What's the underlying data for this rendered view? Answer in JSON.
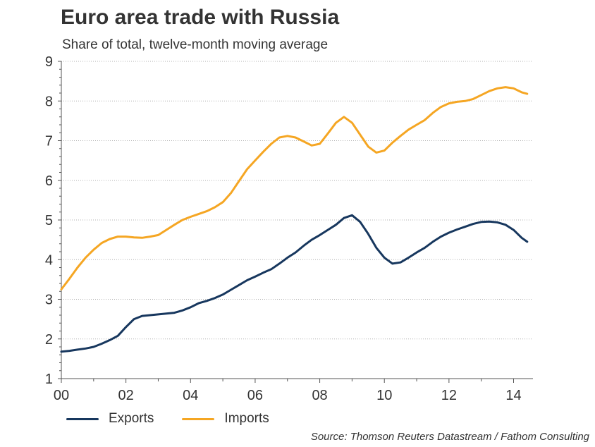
{
  "chart_data": {
    "type": "line",
    "title": "Euro area trade with Russia",
    "subtitle": "Share of total, twelve-month moving average",
    "xlabel": "",
    "ylabel": "",
    "xlim": [
      2000,
      2014.6
    ],
    "ylim": [
      1,
      9
    ],
    "x_ticks": [
      {
        "value": 2000,
        "label": "00"
      },
      {
        "value": 2002,
        "label": "02"
      },
      {
        "value": 2004,
        "label": "04"
      },
      {
        "value": 2006,
        "label": "06"
      },
      {
        "value": 2008,
        "label": "08"
      },
      {
        "value": 2010,
        "label": "10"
      },
      {
        "value": 2012,
        "label": "12"
      },
      {
        "value": 2014,
        "label": "14"
      }
    ],
    "y_ticks": [
      1,
      2,
      3,
      4,
      5,
      6,
      7,
      8,
      9
    ],
    "grid": true,
    "legend_position": "bottom-left",
    "source": "Source: Thomson Reuters Datastream / Fathom Consulting",
    "series": [
      {
        "name": "Exports",
        "color": "#17375e",
        "points": [
          [
            2000.0,
            1.68
          ],
          [
            2000.25,
            1.7
          ],
          [
            2000.5,
            1.73
          ],
          [
            2000.75,
            1.76
          ],
          [
            2001.0,
            1.8
          ],
          [
            2001.25,
            1.88
          ],
          [
            2001.5,
            1.97
          ],
          [
            2001.75,
            2.08
          ],
          [
            2002.0,
            2.3
          ],
          [
            2002.25,
            2.5
          ],
          [
            2002.5,
            2.58
          ],
          [
            2002.75,
            2.6
          ],
          [
            2003.0,
            2.62
          ],
          [
            2003.25,
            2.64
          ],
          [
            2003.5,
            2.66
          ],
          [
            2003.75,
            2.72
          ],
          [
            2004.0,
            2.8
          ],
          [
            2004.25,
            2.9
          ],
          [
            2004.5,
            2.96
          ],
          [
            2004.75,
            3.03
          ],
          [
            2005.0,
            3.12
          ],
          [
            2005.25,
            3.24
          ],
          [
            2005.5,
            3.36
          ],
          [
            2005.75,
            3.48
          ],
          [
            2006.0,
            3.57
          ],
          [
            2006.25,
            3.67
          ],
          [
            2006.5,
            3.76
          ],
          [
            2006.75,
            3.9
          ],
          [
            2007.0,
            4.05
          ],
          [
            2007.25,
            4.18
          ],
          [
            2007.5,
            4.35
          ],
          [
            2007.75,
            4.5
          ],
          [
            2008.0,
            4.62
          ],
          [
            2008.25,
            4.75
          ],
          [
            2008.5,
            4.88
          ],
          [
            2008.75,
            5.05
          ],
          [
            2009.0,
            5.12
          ],
          [
            2009.25,
            4.95
          ],
          [
            2009.5,
            4.65
          ],
          [
            2009.75,
            4.3
          ],
          [
            2010.0,
            4.05
          ],
          [
            2010.25,
            3.9
          ],
          [
            2010.5,
            3.93
          ],
          [
            2010.75,
            4.05
          ],
          [
            2011.0,
            4.18
          ],
          [
            2011.25,
            4.3
          ],
          [
            2011.5,
            4.45
          ],
          [
            2011.75,
            4.58
          ],
          [
            2012.0,
            4.68
          ],
          [
            2012.25,
            4.76
          ],
          [
            2012.5,
            4.83
          ],
          [
            2012.75,
            4.9
          ],
          [
            2013.0,
            4.95
          ],
          [
            2013.25,
            4.96
          ],
          [
            2013.5,
            4.94
          ],
          [
            2013.75,
            4.88
          ],
          [
            2014.0,
            4.75
          ],
          [
            2014.25,
            4.55
          ],
          [
            2014.42,
            4.45
          ]
        ]
      },
      {
        "name": "Imports",
        "color": "#f5a623",
        "points": [
          [
            2000.0,
            3.25
          ],
          [
            2000.25,
            3.52
          ],
          [
            2000.5,
            3.8
          ],
          [
            2000.75,
            4.05
          ],
          [
            2001.0,
            4.25
          ],
          [
            2001.25,
            4.42
          ],
          [
            2001.5,
            4.52
          ],
          [
            2001.75,
            4.58
          ],
          [
            2002.0,
            4.58
          ],
          [
            2002.25,
            4.56
          ],
          [
            2002.5,
            4.55
          ],
          [
            2002.75,
            4.58
          ],
          [
            2003.0,
            4.62
          ],
          [
            2003.25,
            4.75
          ],
          [
            2003.5,
            4.88
          ],
          [
            2003.75,
            5.0
          ],
          [
            2004.0,
            5.08
          ],
          [
            2004.25,
            5.15
          ],
          [
            2004.5,
            5.22
          ],
          [
            2004.75,
            5.32
          ],
          [
            2005.0,
            5.45
          ],
          [
            2005.25,
            5.68
          ],
          [
            2005.5,
            5.98
          ],
          [
            2005.75,
            6.28
          ],
          [
            2006.0,
            6.5
          ],
          [
            2006.25,
            6.72
          ],
          [
            2006.5,
            6.92
          ],
          [
            2006.75,
            7.08
          ],
          [
            2007.0,
            7.12
          ],
          [
            2007.25,
            7.08
          ],
          [
            2007.5,
            6.98
          ],
          [
            2007.75,
            6.88
          ],
          [
            2008.0,
            6.92
          ],
          [
            2008.25,
            7.18
          ],
          [
            2008.5,
            7.45
          ],
          [
            2008.75,
            7.6
          ],
          [
            2009.0,
            7.45
          ],
          [
            2009.25,
            7.15
          ],
          [
            2009.5,
            6.85
          ],
          [
            2009.75,
            6.7
          ],
          [
            2010.0,
            6.75
          ],
          [
            2010.25,
            6.95
          ],
          [
            2010.5,
            7.12
          ],
          [
            2010.75,
            7.28
          ],
          [
            2011.0,
            7.4
          ],
          [
            2011.25,
            7.52
          ],
          [
            2011.5,
            7.7
          ],
          [
            2011.75,
            7.85
          ],
          [
            2012.0,
            7.94
          ],
          [
            2012.25,
            7.98
          ],
          [
            2012.5,
            8.0
          ],
          [
            2012.75,
            8.05
          ],
          [
            2013.0,
            8.15
          ],
          [
            2013.25,
            8.25
          ],
          [
            2013.5,
            8.32
          ],
          [
            2013.75,
            8.35
          ],
          [
            2014.0,
            8.32
          ],
          [
            2014.25,
            8.22
          ],
          [
            2014.42,
            8.18
          ]
        ]
      }
    ]
  }
}
